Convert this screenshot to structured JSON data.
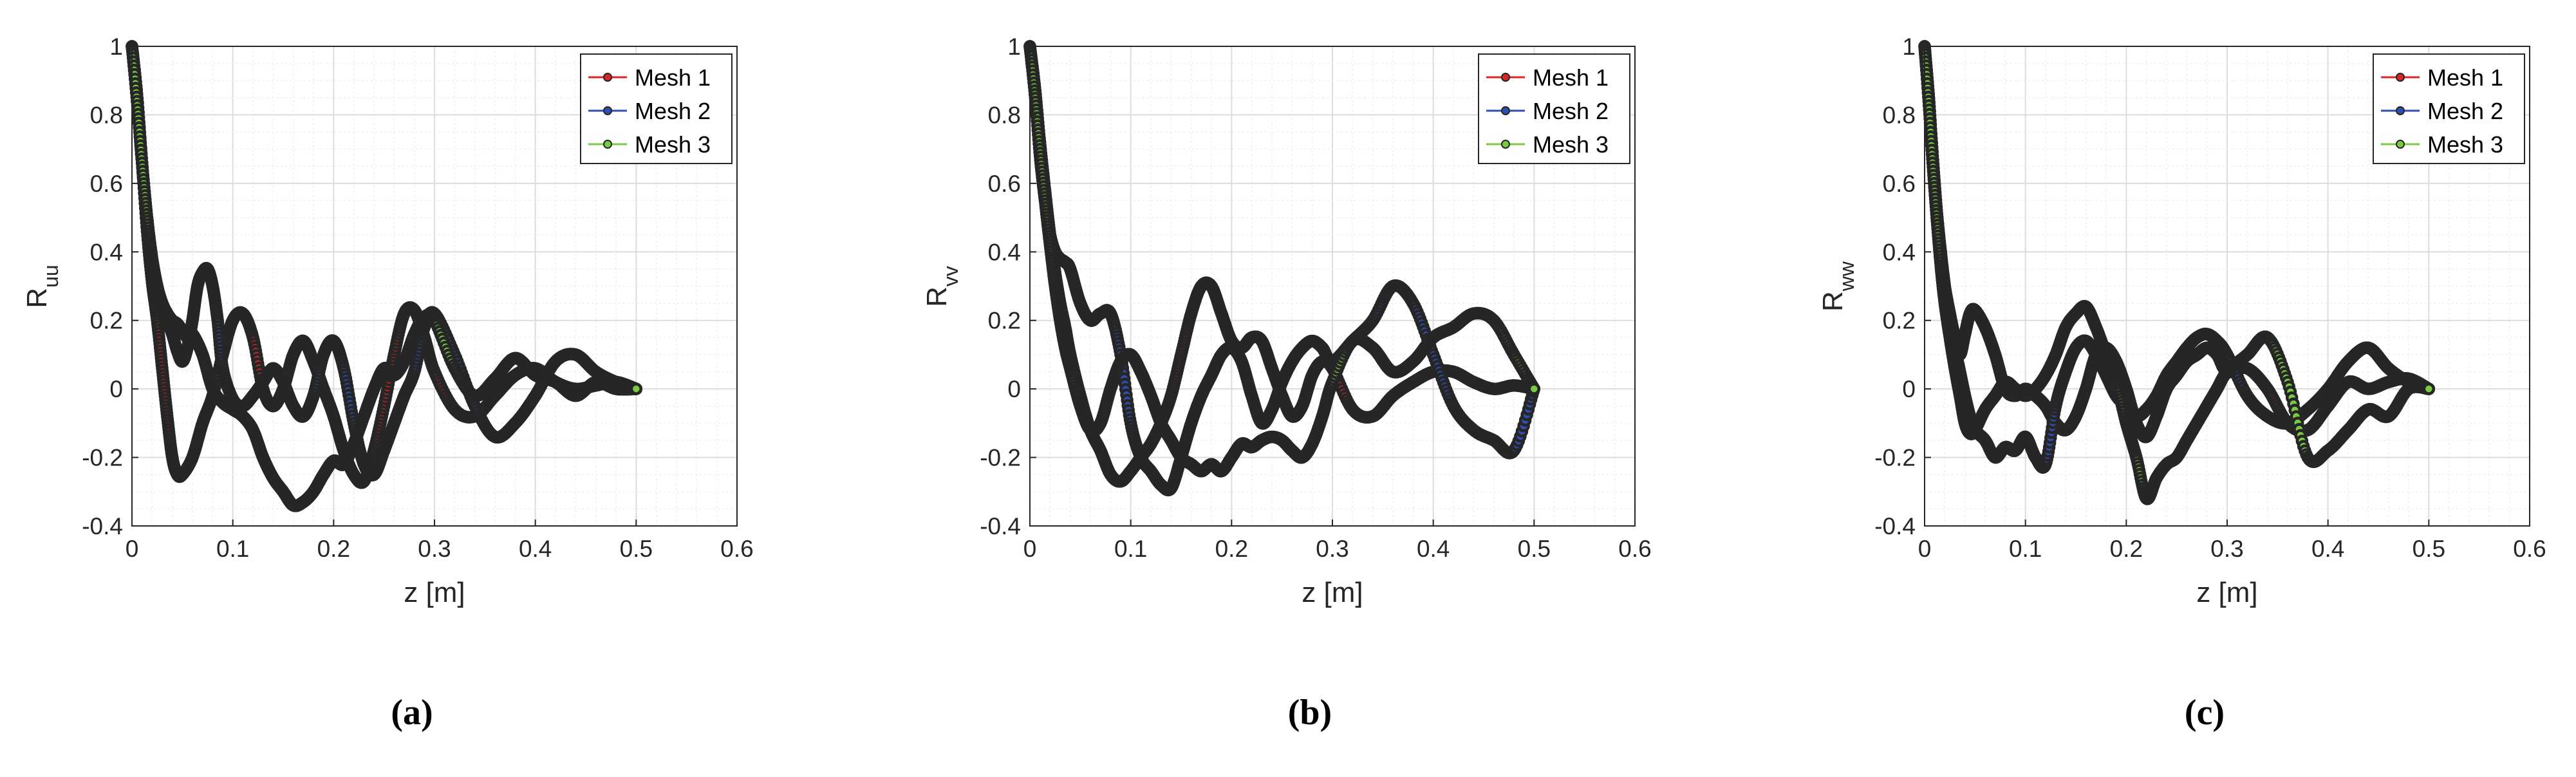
{
  "colors": {
    "mesh1": "#d62728",
    "mesh2": "#2f4fb0",
    "mesh3": "#7ac943",
    "trace": "#262626",
    "grid_major": "#dcdcdc",
    "grid_minor": "#efefef",
    "axis": "#262626"
  },
  "chart_data": [
    {
      "type": "line",
      "panel": "(a)",
      "xlabel": "z [m]",
      "ylabel": {
        "base": "R",
        "sub": "uu"
      },
      "xlim": [
        0,
        0.6
      ],
      "ylim": [
        -0.4,
        1
      ],
      "xticks": [
        "0",
        "0.1",
        "0.2",
        "0.3",
        "0.4",
        "0.5",
        "0.6"
      ],
      "yticks": [
        "1",
        "0.8",
        "0.6",
        "0.4",
        "0.2",
        "0",
        "-0.2",
        "-0.4"
      ],
      "grid": true,
      "legend_location": "top-right",
      "series": [
        {
          "name": "Mesh 1",
          "color_key": "mesh1",
          "x": [
            0,
            0.005,
            0.01,
            0.015,
            0.02,
            0.025,
            0.03,
            0.035,
            0.04,
            0.045,
            0.05,
            0.06,
            0.07,
            0.08,
            0.09,
            0.1,
            0.11,
            0.12,
            0.13,
            0.14,
            0.15,
            0.16,
            0.17,
            0.18,
            0.19,
            0.2,
            0.21,
            0.22,
            0.23,
            0.24,
            0.25,
            0.26,
            0.27,
            0.28,
            0.29,
            0.3,
            0.32,
            0.34,
            0.36,
            0.38,
            0.4,
            0.42,
            0.44,
            0.46,
            0.48,
            0.5
          ],
          "y": [
            1.0,
            0.86,
            0.66,
            0.46,
            0.31,
            0.2,
            0.06,
            -0.08,
            -0.2,
            -0.25,
            -0.25,
            -0.2,
            -0.1,
            -0.02,
            0.1,
            0.2,
            0.22,
            0.15,
            0.0,
            -0.05,
            0.0,
            0.1,
            0.14,
            0.08,
            0.0,
            -0.08,
            -0.18,
            -0.25,
            -0.27,
            -0.18,
            -0.05,
            0.1,
            0.22,
            0.23,
            0.15,
            0.05,
            -0.06,
            -0.08,
            -0.02,
            0.04,
            0.06,
            0.02,
            0.0,
            0.01,
            0.02,
            0.0
          ]
        },
        {
          "name": "Mesh 2",
          "color_key": "mesh2",
          "x": [
            0,
            0.005,
            0.01,
            0.015,
            0.02,
            0.025,
            0.03,
            0.035,
            0.04,
            0.045,
            0.05,
            0.055,
            0.06,
            0.065,
            0.07,
            0.075,
            0.08,
            0.085,
            0.09,
            0.1,
            0.11,
            0.12,
            0.13,
            0.14,
            0.15,
            0.16,
            0.17,
            0.18,
            0.19,
            0.2,
            0.21,
            0.22,
            0.23,
            0.24,
            0.25,
            0.26,
            0.27,
            0.28,
            0.29,
            0.3,
            0.32,
            0.34,
            0.36,
            0.38,
            0.4,
            0.42,
            0.44,
            0.46,
            0.48,
            0.5
          ],
          "y": [
            1.0,
            0.86,
            0.66,
            0.5,
            0.38,
            0.3,
            0.24,
            0.2,
            0.16,
            0.11,
            0.08,
            0.12,
            0.2,
            0.3,
            0.34,
            0.35,
            0.3,
            0.2,
            0.06,
            -0.03,
            -0.05,
            -0.02,
            0.02,
            0.06,
            0.02,
            -0.05,
            -0.08,
            -0.02,
            0.1,
            0.14,
            0.06,
            -0.1,
            -0.22,
            -0.25,
            -0.18,
            -0.1,
            -0.02,
            0.05,
            0.18,
            0.22,
            0.1,
            -0.05,
            -0.14,
            -0.1,
            -0.02,
            0.08,
            0.1,
            0.05,
            0.02,
            0.0
          ]
        },
        {
          "name": "Mesh 3",
          "color_key": "mesh3",
          "x": [
            0,
            0.005,
            0.01,
            0.015,
            0.02,
            0.025,
            0.03,
            0.035,
            0.04,
            0.045,
            0.05,
            0.055,
            0.06,
            0.07,
            0.08,
            0.09,
            0.1,
            0.11,
            0.12,
            0.13,
            0.14,
            0.15,
            0.16,
            0.17,
            0.18,
            0.19,
            0.2,
            0.21,
            0.22,
            0.23,
            0.24,
            0.25,
            0.26,
            0.27,
            0.28,
            0.29,
            0.3,
            0.32,
            0.34,
            0.36,
            0.38,
            0.4,
            0.42,
            0.44,
            0.46,
            0.48,
            0.5
          ],
          "y": [
            1.0,
            0.84,
            0.66,
            0.5,
            0.38,
            0.3,
            0.25,
            0.22,
            0.2,
            0.19,
            0.17,
            0.15,
            0.16,
            0.1,
            0.0,
            -0.04,
            -0.06,
            -0.08,
            -0.12,
            -0.2,
            -0.26,
            -0.3,
            -0.34,
            -0.33,
            -0.3,
            -0.25,
            -0.21,
            -0.22,
            -0.16,
            -0.08,
            0.0,
            0.06,
            0.04,
            0.08,
            0.16,
            0.21,
            0.2,
            0.06,
            -0.02,
            0.03,
            0.09,
            0.04,
            0.02,
            -0.02,
            0.02,
            0.0,
            0.0
          ]
        }
      ]
    },
    {
      "type": "line",
      "panel": "(b)",
      "xlabel": "z [m]",
      "ylabel": {
        "base": "R",
        "sub": "vv"
      },
      "xlim": [
        0,
        0.6
      ],
      "ylim": [
        -0.4,
        1
      ],
      "xticks": [
        "0",
        "0.1",
        "0.2",
        "0.3",
        "0.4",
        "0.5",
        "0.6"
      ],
      "yticks": [
        "1",
        "0.8",
        "0.6",
        "0.4",
        "0.2",
        "0",
        "-0.2",
        "-0.4"
      ],
      "grid": true,
      "legend_location": "top-right",
      "series": [
        {
          "name": "Mesh 1",
          "color_key": "mesh1",
          "x": [
            0,
            0.005,
            0.01,
            0.015,
            0.02,
            0.025,
            0.03,
            0.035,
            0.04,
            0.05,
            0.06,
            0.07,
            0.08,
            0.09,
            0.1,
            0.11,
            0.12,
            0.13,
            0.14,
            0.15,
            0.16,
            0.17,
            0.18,
            0.19,
            0.2,
            0.21,
            0.22,
            0.23,
            0.24,
            0.25,
            0.26,
            0.27,
            0.28,
            0.29,
            0.3,
            0.32,
            0.34,
            0.36,
            0.38,
            0.4,
            0.42,
            0.44,
            0.46,
            0.48,
            0.5
          ],
          "y": [
            1.0,
            0.88,
            0.72,
            0.58,
            0.45,
            0.34,
            0.25,
            0.18,
            0.1,
            -0.02,
            -0.12,
            -0.18,
            -0.25,
            -0.27,
            -0.24,
            -0.2,
            -0.16,
            -0.1,
            -0.02,
            0.1,
            0.22,
            0.3,
            0.3,
            0.22,
            0.14,
            0.12,
            0.15,
            0.14,
            0.06,
            -0.02,
            -0.08,
            -0.05,
            0.04,
            0.08,
            0.06,
            -0.06,
            -0.08,
            -0.02,
            0.02,
            0.05,
            0.05,
            0.02,
            0.0,
            0.01,
            0.0
          ]
        },
        {
          "name": "Mesh 2",
          "color_key": "mesh2",
          "x": [
            0,
            0.005,
            0.01,
            0.015,
            0.02,
            0.025,
            0.03,
            0.035,
            0.04,
            0.05,
            0.06,
            0.07,
            0.08,
            0.09,
            0.1,
            0.11,
            0.12,
            0.13,
            0.14,
            0.15,
            0.16,
            0.17,
            0.18,
            0.19,
            0.2,
            0.21,
            0.22,
            0.23,
            0.24,
            0.25,
            0.26,
            0.27,
            0.28,
            0.29,
            0.3,
            0.32,
            0.34,
            0.36,
            0.38,
            0.4,
            0.42,
            0.44,
            0.46,
            0.48,
            0.5
          ],
          "y": [
            1.0,
            0.86,
            0.68,
            0.55,
            0.45,
            0.4,
            0.38,
            0.37,
            0.35,
            0.25,
            0.2,
            0.22,
            0.22,
            0.1,
            -0.1,
            -0.2,
            -0.24,
            -0.28,
            -0.29,
            -0.2,
            -0.1,
            -0.02,
            0.04,
            0.1,
            0.12,
            0.08,
            -0.02,
            -0.1,
            -0.06,
            0.02,
            0.08,
            0.12,
            0.14,
            0.12,
            0.08,
            0.14,
            0.2,
            0.3,
            0.25,
            0.1,
            -0.05,
            -0.12,
            -0.15,
            -0.18,
            0.0
          ]
        },
        {
          "name": "Mesh 3",
          "color_key": "mesh3",
          "x": [
            0,
            0.005,
            0.01,
            0.015,
            0.02,
            0.025,
            0.03,
            0.035,
            0.04,
            0.05,
            0.06,
            0.07,
            0.08,
            0.09,
            0.1,
            0.11,
            0.12,
            0.13,
            0.14,
            0.15,
            0.16,
            0.17,
            0.18,
            0.19,
            0.2,
            0.21,
            0.22,
            0.23,
            0.24,
            0.25,
            0.26,
            0.27,
            0.28,
            0.29,
            0.3,
            0.32,
            0.34,
            0.36,
            0.38,
            0.4,
            0.42,
            0.44,
            0.46,
            0.48,
            0.5
          ],
          "y": [
            1.0,
            0.86,
            0.7,
            0.55,
            0.42,
            0.3,
            0.2,
            0.12,
            0.06,
            -0.05,
            -0.12,
            -0.1,
            0.0,
            0.08,
            0.1,
            0.05,
            -0.02,
            -0.1,
            -0.15,
            -0.2,
            -0.22,
            -0.24,
            -0.22,
            -0.24,
            -0.2,
            -0.16,
            -0.17,
            -0.15,
            -0.14,
            -0.15,
            -0.18,
            -0.2,
            -0.16,
            -0.08,
            0.02,
            0.14,
            0.12,
            0.05,
            0.08,
            0.15,
            0.18,
            0.22,
            0.2,
            0.1,
            0.0
          ]
        }
      ]
    },
    {
      "type": "line",
      "panel": "(c)",
      "xlabel": "z [m]",
      "ylabel": {
        "base": "R",
        "sub": "ww"
      },
      "xlim": [
        0,
        0.6
      ],
      "ylim": [
        -0.4,
        1
      ],
      "xticks": [
        "0",
        "0.1",
        "0.2",
        "0.3",
        "0.4",
        "0.5",
        "0.6"
      ],
      "yticks": [
        "1",
        "0.8",
        "0.6",
        "0.4",
        "0.2",
        "0",
        "-0.2",
        "-0.4"
      ],
      "grid": true,
      "legend_location": "top-right",
      "series": [
        {
          "name": "Mesh 1",
          "color_key": "mesh1",
          "x": [
            0,
            0.004,
            0.008,
            0.012,
            0.016,
            0.02,
            0.025,
            0.03,
            0.035,
            0.04,
            0.045,
            0.05,
            0.06,
            0.07,
            0.08,
            0.09,
            0.1,
            0.11,
            0.12,
            0.13,
            0.14,
            0.15,
            0.16,
            0.17,
            0.18,
            0.19,
            0.2,
            0.21,
            0.22,
            0.23,
            0.24,
            0.25,
            0.26,
            0.27,
            0.28,
            0.29,
            0.3,
            0.32,
            0.34,
            0.36,
            0.38,
            0.4,
            0.42,
            0.44,
            0.46,
            0.48,
            0.5
          ],
          "y": [
            1.0,
            0.86,
            0.68,
            0.52,
            0.4,
            0.3,
            0.22,
            0.15,
            0.1,
            0.16,
            0.22,
            0.23,
            0.18,
            0.1,
            0.0,
            -0.02,
            0.0,
            -0.02,
            -0.05,
            -0.1,
            -0.12,
            -0.08,
            0.0,
            0.1,
            0.12,
            0.08,
            0.0,
            -0.1,
            -0.14,
            -0.08,
            0.0,
            0.04,
            0.08,
            0.1,
            0.12,
            0.1,
            0.05,
            0.06,
            0.0,
            -0.1,
            -0.12,
            -0.05,
            0.02,
            0.0,
            0.02,
            0.03,
            0.0
          ]
        },
        {
          "name": "Mesh 2",
          "color_key": "mesh2",
          "x": [
            0,
            0.004,
            0.008,
            0.012,
            0.016,
            0.02,
            0.025,
            0.03,
            0.035,
            0.04,
            0.045,
            0.05,
            0.06,
            0.07,
            0.08,
            0.09,
            0.1,
            0.11,
            0.12,
            0.13,
            0.14,
            0.15,
            0.16,
            0.17,
            0.18,
            0.19,
            0.2,
            0.21,
            0.22,
            0.23,
            0.24,
            0.25,
            0.26,
            0.27,
            0.28,
            0.29,
            0.3,
            0.32,
            0.34,
            0.36,
            0.38,
            0.4,
            0.42,
            0.44,
            0.46,
            0.48,
            0.5
          ],
          "y": [
            1.0,
            0.86,
            0.68,
            0.52,
            0.4,
            0.3,
            0.2,
            0.12,
            0.05,
            -0.02,
            -0.08,
            -0.12,
            -0.15,
            -0.2,
            -0.17,
            -0.18,
            -0.14,
            -0.2,
            -0.22,
            -0.05,
            0.05,
            0.12,
            0.14,
            0.1,
            0.04,
            -0.02,
            -0.05,
            -0.08,
            -0.06,
            -0.02,
            0.04,
            0.08,
            0.12,
            0.15,
            0.16,
            0.14,
            0.1,
            -0.02,
            -0.08,
            -0.1,
            -0.06,
            0.0,
            0.08,
            0.12,
            0.06,
            0.02,
            0.0
          ]
        },
        {
          "name": "Mesh 3",
          "color_key": "mesh3",
          "x": [
            0,
            0.004,
            0.008,
            0.012,
            0.016,
            0.02,
            0.025,
            0.03,
            0.035,
            0.04,
            0.045,
            0.05,
            0.06,
            0.07,
            0.08,
            0.09,
            0.1,
            0.11,
            0.12,
            0.13,
            0.14,
            0.15,
            0.16,
            0.17,
            0.18,
            0.19,
            0.2,
            0.21,
            0.22,
            0.23,
            0.24,
            0.25,
            0.26,
            0.27,
            0.28,
            0.29,
            0.3,
            0.32,
            0.34,
            0.36,
            0.38,
            0.4,
            0.42,
            0.44,
            0.46,
            0.48,
            0.5
          ],
          "y": [
            1.0,
            0.84,
            0.66,
            0.5,
            0.36,
            0.25,
            0.15,
            0.06,
            -0.02,
            -0.1,
            -0.13,
            -0.12,
            -0.06,
            -0.02,
            0.02,
            0.0,
            -0.02,
            0.0,
            0.04,
            0.1,
            0.18,
            0.22,
            0.24,
            0.18,
            0.1,
            0.02,
            -0.1,
            -0.2,
            -0.32,
            -0.26,
            -0.22,
            -0.2,
            -0.15,
            -0.1,
            -0.05,
            0.0,
            0.05,
            0.1,
            0.15,
            0.02,
            -0.2,
            -0.18,
            -0.12,
            -0.06,
            -0.08,
            0.0,
            0.0
          ]
        }
      ]
    }
  ]
}
